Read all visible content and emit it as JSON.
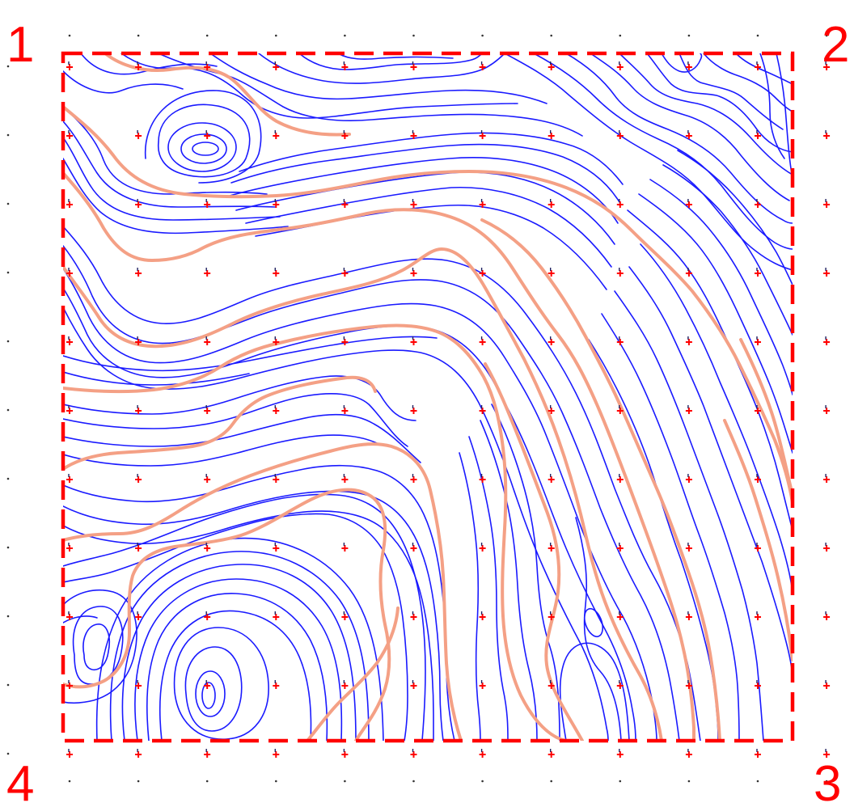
{
  "corner_labels": {
    "top_left": "1",
    "top_right": "2",
    "bottom_right": "3",
    "bottom_left": "4"
  },
  "colors": {
    "label": "#ff0000",
    "border": "#ff0000",
    "minor_contour": "#1a1aff",
    "index_contour": "#f4a085",
    "marker_red": "#ff0000",
    "marker_dark": "#202060",
    "grid_dot": "#333333"
  },
  "grid": {
    "marker_rows": 11,
    "marker_cols": 12
  }
}
